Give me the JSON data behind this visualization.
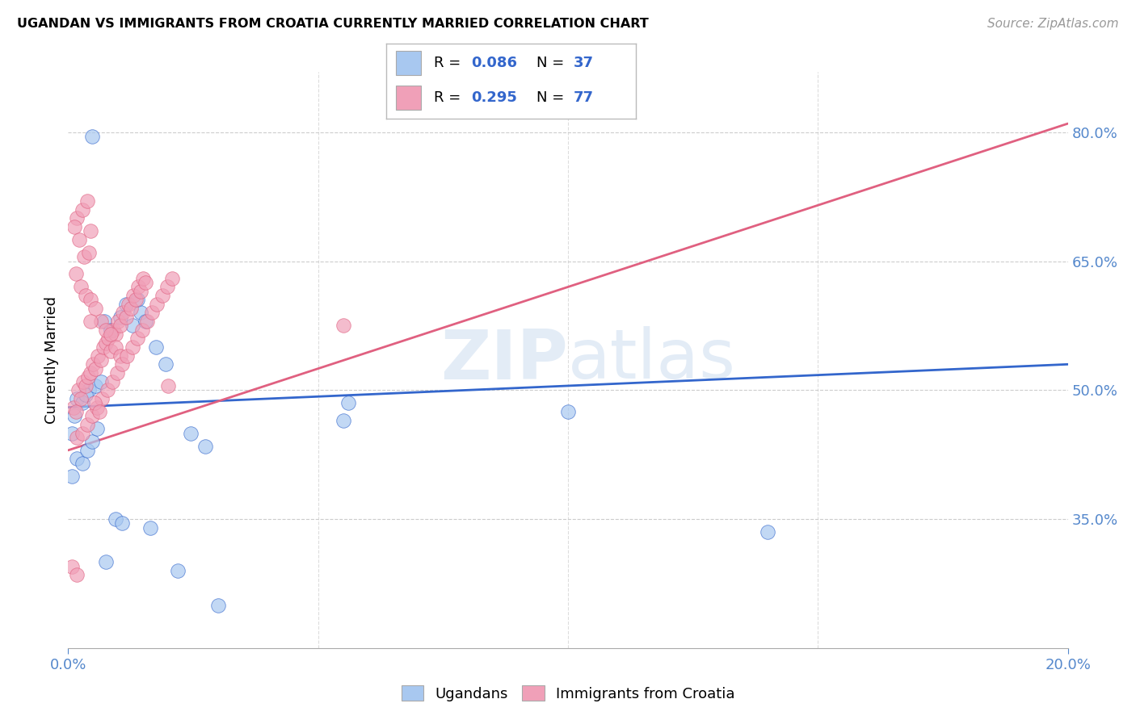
{
  "title": "UGANDAN VS IMMIGRANTS FROM CROATIA CURRENTLY MARRIED CORRELATION CHART",
  "source": "Source: ZipAtlas.com",
  "ylabel": "Currently Married",
  "watermark": "ZIPatlas",
  "blue_scatter_color": "#a8c8f0",
  "pink_scatter_color": "#f0a0b8",
  "blue_line_color": "#3366cc",
  "pink_line_color": "#e06080",
  "legend_text_color": "#3366cc",
  "legend_blue_R": "0.086",
  "legend_blue_N": "37",
  "legend_pink_R": "0.295",
  "legend_pink_N": "77",
  "xmin": 0.0,
  "xmax": 20.0,
  "ymin": 20.0,
  "ymax": 87.0,
  "right_yticks": [
    35.0,
    50.0,
    65.0,
    80.0
  ],
  "ugandan_x": [
    0.18,
    0.28,
    0.12,
    0.08,
    0.42,
    0.35,
    0.72,
    0.85,
    0.55,
    0.65,
    1.15,
    1.05,
    1.28,
    1.45,
    1.38,
    1.55,
    1.75,
    1.95,
    0.18,
    0.28,
    0.08,
    0.38,
    0.48,
    0.58,
    0.95,
    1.08,
    1.65,
    0.75,
    2.45,
    2.75,
    5.5,
    5.6,
    10.0,
    14.0,
    2.2,
    3.0,
    0.48
  ],
  "ugandan_y": [
    49.0,
    48.5,
    47.0,
    45.0,
    50.0,
    49.5,
    58.0,
    57.0,
    50.5,
    51.0,
    60.0,
    58.5,
    57.5,
    59.0,
    60.5,
    58.0,
    55.0,
    53.0,
    42.0,
    41.5,
    40.0,
    43.0,
    44.0,
    45.5,
    35.0,
    34.5,
    34.0,
    30.0,
    45.0,
    43.5,
    46.5,
    48.5,
    47.5,
    33.5,
    29.0,
    25.0,
    79.5
  ],
  "croatia_x": [
    0.1,
    0.15,
    0.2,
    0.25,
    0.3,
    0.35,
    0.4,
    0.45,
    0.5,
    0.55,
    0.6,
    0.65,
    0.7,
    0.75,
    0.8,
    0.85,
    0.9,
    0.95,
    1.0,
    1.05,
    1.1,
    1.15,
    1.2,
    1.25,
    1.3,
    1.35,
    1.4,
    1.45,
    1.5,
    1.55,
    0.18,
    0.28,
    0.38,
    0.45,
    0.12,
    0.22,
    0.32,
    0.42,
    0.15,
    0.25,
    0.35,
    0.45,
    0.55,
    0.65,
    0.75,
    0.85,
    0.95,
    1.05,
    0.18,
    0.28,
    0.38,
    0.48,
    0.58,
    0.68,
    0.78,
    0.88,
    0.98,
    1.08,
    1.18,
    1.28,
    1.38,
    1.48,
    1.58,
    1.68,
    1.78,
    1.88,
    1.98,
    2.08,
    0.45,
    5.5,
    0.08,
    0.18,
    2.0,
    0.52,
    0.62
  ],
  "croatia_y": [
    48.0,
    47.5,
    50.0,
    49.0,
    51.0,
    50.5,
    51.5,
    52.0,
    53.0,
    52.5,
    54.0,
    53.5,
    55.0,
    55.5,
    56.0,
    54.5,
    57.0,
    56.5,
    58.0,
    57.5,
    59.0,
    58.5,
    60.0,
    59.5,
    61.0,
    60.5,
    62.0,
    61.5,
    63.0,
    62.5,
    70.0,
    71.0,
    72.0,
    68.5,
    69.0,
    67.5,
    65.5,
    66.0,
    63.5,
    62.0,
    61.0,
    60.5,
    59.5,
    58.0,
    57.0,
    56.5,
    55.0,
    54.0,
    44.5,
    45.0,
    46.0,
    47.0,
    48.0,
    49.0,
    50.0,
    51.0,
    52.0,
    53.0,
    54.0,
    55.0,
    56.0,
    57.0,
    58.0,
    59.0,
    60.0,
    61.0,
    62.0,
    63.0,
    58.0,
    57.5,
    29.5,
    28.5,
    50.5,
    48.5,
    47.5
  ],
  "blue_trend_x": [
    0.0,
    20.0
  ],
  "blue_trend_y": [
    48.0,
    53.0
  ],
  "pink_trend_x": [
    0.0,
    20.0
  ],
  "pink_trend_y": [
    43.0,
    81.0
  ]
}
